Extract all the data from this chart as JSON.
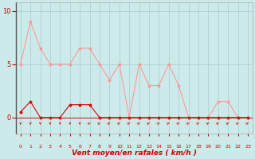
{
  "x": [
    0,
    1,
    2,
    3,
    4,
    5,
    6,
    7,
    8,
    9,
    10,
    11,
    12,
    13,
    14,
    15,
    16,
    17,
    18,
    19,
    20,
    21,
    22,
    23
  ],
  "y_mean": [
    0.5,
    1.5,
    0,
    0,
    0,
    1.2,
    1.2,
    1.2,
    0,
    0,
    0,
    0,
    0,
    0,
    0,
    0,
    0,
    0,
    0,
    0,
    0,
    0,
    0,
    0
  ],
  "y_gust": [
    5.0,
    9.0,
    6.5,
    5.0,
    5.0,
    5.0,
    6.5,
    6.5,
    5.0,
    3.5,
    5.0,
    0,
    5.0,
    3.0,
    3.0,
    5.0,
    3.0,
    0,
    0,
    0,
    1.5,
    1.5,
    0,
    0
  ],
  "background_color": "#cceaea",
  "grid_color": "#aacccc",
  "line_color_mean": "#dd0000",
  "line_color_gust": "#ff9999",
  "xlabel": "Vent moyen/en rafales ( km/h )",
  "yticks": [
    0,
    5,
    10
  ],
  "ylim": [
    -1.5,
    10.8
  ],
  "xlim": [
    -0.5,
    23.5
  ],
  "xlabel_color": "#cc0000",
  "tick_color": "#cc0000",
  "arrow_color": "#cc2222",
  "bottom_line_color": "#cc2222",
  "arrow_down_indices": [
    0,
    1,
    2,
    3,
    4,
    5,
    6
  ],
  "arrow_right_indices": [
    7,
    8,
    9,
    10,
    11,
    12,
    13,
    14,
    15,
    16,
    17,
    18,
    19,
    20,
    21,
    22,
    23
  ]
}
